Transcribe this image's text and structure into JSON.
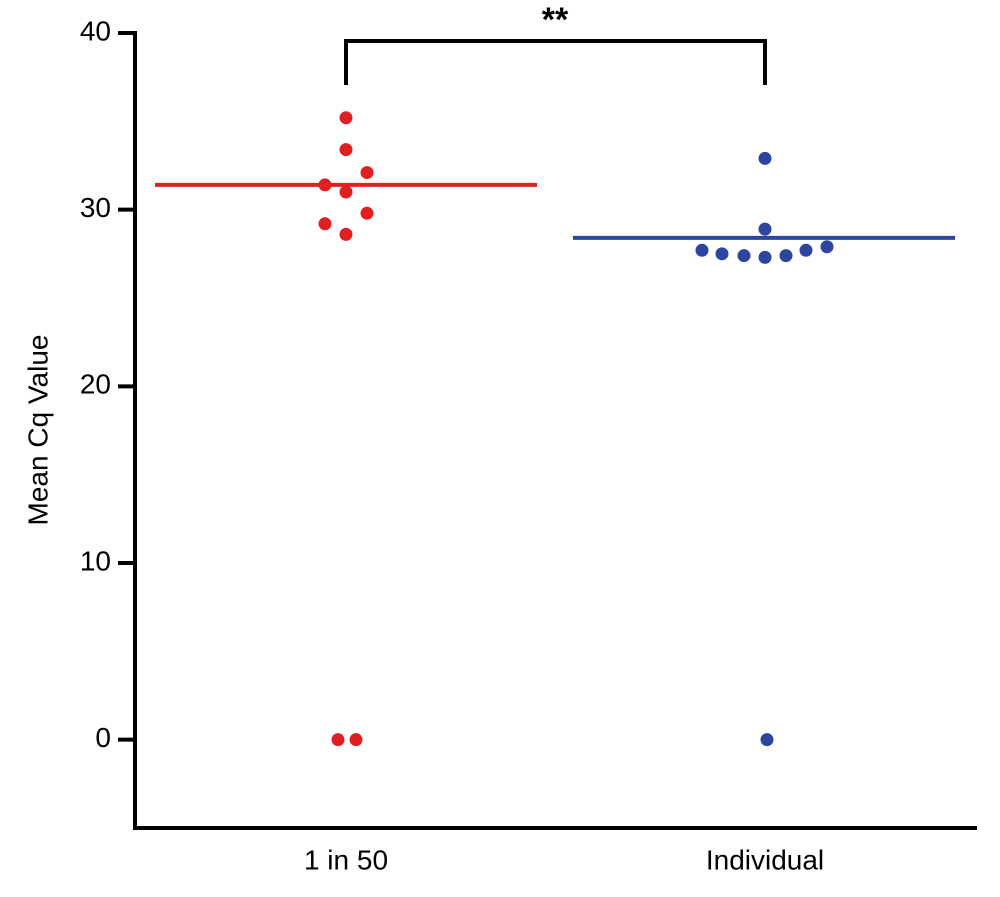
{
  "chart_data": {
    "type": "dot",
    "y_label": "Mean Cq Value",
    "categories": [
      "1 in 50",
      "Individual"
    ],
    "groups": [
      {
        "color": "#e02020",
        "mean": 31.4,
        "values": [
          35.2,
          33.4,
          32.1,
          31.4,
          31.0,
          29.8,
          29.2,
          28.6,
          0,
          0
        ]
      },
      {
        "color": "#2e45a0",
        "mean": 28.4,
        "values": [
          32.9,
          28.9,
          27.7,
          27.5,
          27.4,
          27.3,
          27.4,
          27.7,
          27.9,
          0
        ]
      }
    ],
    "annotation": "**",
    "ylim": [
      -5,
      40
    ],
    "yticks": [
      0,
      10,
      20,
      30,
      40
    ],
    "grid": false
  }
}
